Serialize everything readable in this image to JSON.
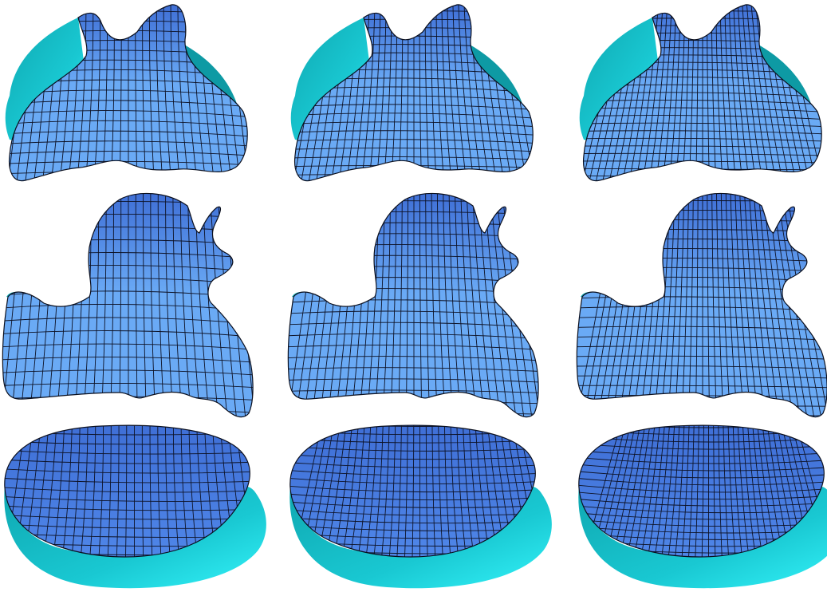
{
  "figure": {
    "layout": {
      "rows": 3,
      "columns": 3
    },
    "colors": {
      "background": "#ffffff",
      "surface_light": "#6aaaf5",
      "surface_dark": "#3f6fd6",
      "backside_cyan": "#19c8d2",
      "backside_cyan_light": "#33f2f8",
      "mesh_lines": "#0d1226"
    },
    "rows": [
      {
        "shape": "saddle-surface",
        "panels": [
          {
            "mesh": "curved-quad-grid",
            "column": 1
          },
          {
            "mesh": "curved-quad-grid",
            "column": 2
          },
          {
            "mesh": "curved-quad-grid",
            "column": 3
          }
        ]
      },
      {
        "shape": "duck-silhouette-surface",
        "panels": [
          {
            "mesh": "curved-quad-grid",
            "column": 1
          },
          {
            "mesh": "curved-quad-grid",
            "column": 2
          },
          {
            "mesh": "curved-quad-grid",
            "column": 3
          }
        ]
      },
      {
        "shape": "bowl-surface",
        "panels": [
          {
            "mesh": "curved-quad-grid",
            "column": 1
          },
          {
            "mesh": "curved-quad-grid",
            "column": 2
          },
          {
            "mesh": "curved-quad-grid",
            "column": 3
          }
        ]
      }
    ]
  }
}
